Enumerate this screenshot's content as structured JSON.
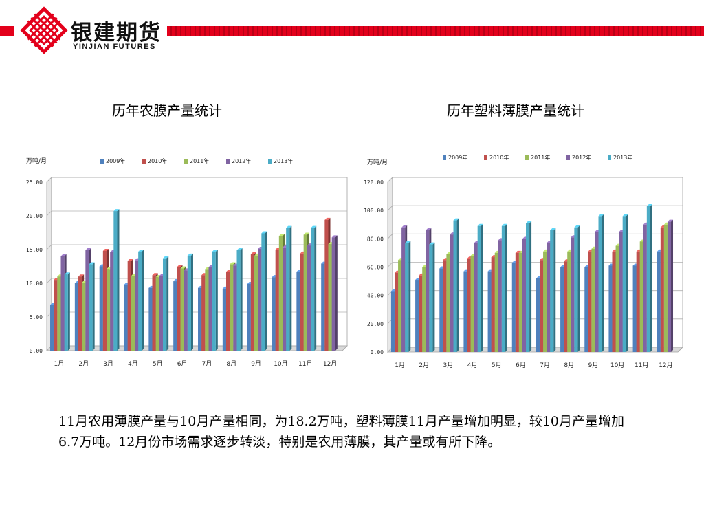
{
  "brand": {
    "name_cn": "银建期货",
    "name_en": "YINJIAN FUTURES",
    "logo_icon": "yinjian-knot-logo-icon",
    "accent_color": "#e3001b"
  },
  "titles": {
    "left": "历年农膜产量统计",
    "right": "历年塑料薄膜产量统计"
  },
  "paragraph": "11月农用薄膜产量与10月产量相同，为18.2万吨，塑料薄膜11月产量增加明显，较10月产量增加6.7万吨。12月份市场需求逐步转淡，特别是农用薄膜，其产量或有所下降。",
  "chart_data": [
    {
      "type": "bar",
      "ylabel": "万吨/月",
      "categories": [
        "1月",
        "2月",
        "3月",
        "4月",
        "5月",
        "6月",
        "7月",
        "8月",
        "9月",
        "10月",
        "11月",
        "12月"
      ],
      "ylim": [
        0,
        25
      ],
      "yticks": [
        "0.00",
        "5.00",
        "10.00",
        "15.00",
        "20.00",
        "25.00"
      ],
      "ytick_values": [
        0,
        5,
        10,
        15,
        20,
        25
      ],
      "legend_position": "top",
      "grid": true,
      "series": [
        {
          "name": "2009年",
          "color": "#4f81bd",
          "values": [
            6.8,
            10.0,
            12.5,
            9.8,
            9.3,
            10.3,
            9.3,
            9.2,
            9.9,
            10.9,
            11.7,
            12.9
          ]
        },
        {
          "name": "2010年",
          "color": "#c0504d",
          "values": [
            10.5,
            11.0,
            14.8,
            13.3,
            11.2,
            12.4,
            11.2,
            11.7,
            14.3,
            15.0,
            14.4,
            19.4
          ]
        },
        {
          "name": "2011年",
          "color": "#9bbb59",
          "values": [
            11.0,
            10.1,
            12.1,
            11.1,
            10.9,
            12.2,
            12.1,
            12.8,
            14.1,
            17.0,
            17.2,
            15.8
          ]
        },
        {
          "name": "2012年",
          "color": "#8064a2",
          "values": [
            14.0,
            14.9,
            14.6,
            13.4,
            11.1,
            11.9,
            12.4,
            12.6,
            15.1,
            15.3,
            15.6,
            16.8
          ]
        },
        {
          "name": "2013年",
          "color": "#4bacc6",
          "values": [
            11.3,
            12.8,
            20.7,
            14.7,
            13.7,
            14.1,
            14.7,
            14.9,
            17.4,
            18.2,
            18.2,
            null
          ]
        }
      ]
    },
    {
      "type": "bar",
      "ylabel": "万吨/月",
      "categories": [
        "1月",
        "2月",
        "3月",
        "4月",
        "5月",
        "6月",
        "7月",
        "8月",
        "9月",
        "10月",
        "11月",
        "12月"
      ],
      "ylim": [
        0,
        120
      ],
      "yticks": [
        "0.00",
        "20.00",
        "40.00",
        "60.00",
        "80.00",
        "100.00",
        "120.00"
      ],
      "ytick_values": [
        0,
        20,
        40,
        60,
        80,
        100,
        120
      ],
      "legend_position": "top",
      "grid": true,
      "series": [
        {
          "name": "2009年",
          "color": "#4f81bd",
          "values": [
            43,
            51,
            59,
            57,
            57,
            63,
            52,
            60,
            60,
            61,
            61,
            71
          ]
        },
        {
          "name": "2010年",
          "color": "#c0504d",
          "values": [
            56,
            54,
            65,
            66,
            67,
            70,
            65,
            64,
            71,
            71,
            71,
            88
          ]
        },
        {
          "name": "2011年",
          "color": "#9bbb59",
          "values": [
            65,
            60,
            69,
            68,
            70,
            70,
            71,
            71,
            73,
            75,
            78,
            90
          ]
        },
        {
          "name": "2012年",
          "color": "#8064a2",
          "values": [
            88,
            86,
            83,
            77,
            79,
            80,
            77,
            81,
            85,
            85,
            90,
            92
          ]
        },
        {
          "name": "2013年",
          "color": "#4bacc6",
          "values": [
            77,
            76,
            93,
            89,
            89,
            91,
            86,
            88,
            96,
            96,
            103,
            null
          ]
        }
      ]
    }
  ]
}
